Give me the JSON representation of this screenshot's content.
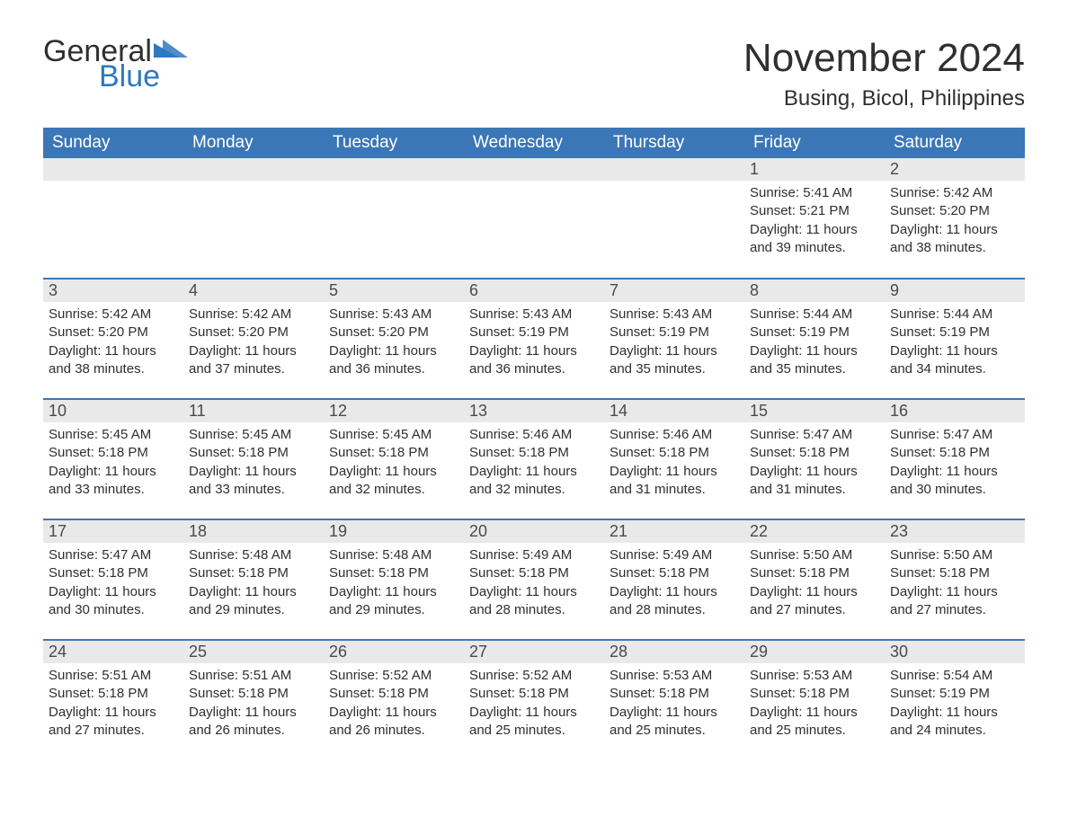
{
  "logo": {
    "word1": "General",
    "word2": "Blue",
    "accent_color": "#2f79bf"
  },
  "title": "November 2024",
  "location": "Busing, Bicol, Philippines",
  "colors": {
    "header_bg": "#3b77b6",
    "header_text": "#ffffff",
    "daynum_bg": "#e9e9e9",
    "row_border": "#3b77b6",
    "body_text": "#2f2f2f",
    "page_bg": "#ffffff"
  },
  "fonts": {
    "title_size_pt": 33,
    "location_size_pt": 18,
    "header_size_pt": 14,
    "cell_size_pt": 11
  },
  "columns": [
    "Sunday",
    "Monday",
    "Tuesday",
    "Wednesday",
    "Thursday",
    "Friday",
    "Saturday"
  ],
  "weeks": [
    [
      null,
      null,
      null,
      null,
      null,
      {
        "day": "1",
        "sunrise": "Sunrise: 5:41 AM",
        "sunset": "Sunset: 5:21 PM",
        "daylight": "Daylight: 11 hours and 39 minutes."
      },
      {
        "day": "2",
        "sunrise": "Sunrise: 5:42 AM",
        "sunset": "Sunset: 5:20 PM",
        "daylight": "Daylight: 11 hours and 38 minutes."
      }
    ],
    [
      {
        "day": "3",
        "sunrise": "Sunrise: 5:42 AM",
        "sunset": "Sunset: 5:20 PM",
        "daylight": "Daylight: 11 hours and 38 minutes."
      },
      {
        "day": "4",
        "sunrise": "Sunrise: 5:42 AM",
        "sunset": "Sunset: 5:20 PM",
        "daylight": "Daylight: 11 hours and 37 minutes."
      },
      {
        "day": "5",
        "sunrise": "Sunrise: 5:43 AM",
        "sunset": "Sunset: 5:20 PM",
        "daylight": "Daylight: 11 hours and 36 minutes."
      },
      {
        "day": "6",
        "sunrise": "Sunrise: 5:43 AM",
        "sunset": "Sunset: 5:19 PM",
        "daylight": "Daylight: 11 hours and 36 minutes."
      },
      {
        "day": "7",
        "sunrise": "Sunrise: 5:43 AM",
        "sunset": "Sunset: 5:19 PM",
        "daylight": "Daylight: 11 hours and 35 minutes."
      },
      {
        "day": "8",
        "sunrise": "Sunrise: 5:44 AM",
        "sunset": "Sunset: 5:19 PM",
        "daylight": "Daylight: 11 hours and 35 minutes."
      },
      {
        "day": "9",
        "sunrise": "Sunrise: 5:44 AM",
        "sunset": "Sunset: 5:19 PM",
        "daylight": "Daylight: 11 hours and 34 minutes."
      }
    ],
    [
      {
        "day": "10",
        "sunrise": "Sunrise: 5:45 AM",
        "sunset": "Sunset: 5:18 PM",
        "daylight": "Daylight: 11 hours and 33 minutes."
      },
      {
        "day": "11",
        "sunrise": "Sunrise: 5:45 AM",
        "sunset": "Sunset: 5:18 PM",
        "daylight": "Daylight: 11 hours and 33 minutes."
      },
      {
        "day": "12",
        "sunrise": "Sunrise: 5:45 AM",
        "sunset": "Sunset: 5:18 PM",
        "daylight": "Daylight: 11 hours and 32 minutes."
      },
      {
        "day": "13",
        "sunrise": "Sunrise: 5:46 AM",
        "sunset": "Sunset: 5:18 PM",
        "daylight": "Daylight: 11 hours and 32 minutes."
      },
      {
        "day": "14",
        "sunrise": "Sunrise: 5:46 AM",
        "sunset": "Sunset: 5:18 PM",
        "daylight": "Daylight: 11 hours and 31 minutes."
      },
      {
        "day": "15",
        "sunrise": "Sunrise: 5:47 AM",
        "sunset": "Sunset: 5:18 PM",
        "daylight": "Daylight: 11 hours and 31 minutes."
      },
      {
        "day": "16",
        "sunrise": "Sunrise: 5:47 AM",
        "sunset": "Sunset: 5:18 PM",
        "daylight": "Daylight: 11 hours and 30 minutes."
      }
    ],
    [
      {
        "day": "17",
        "sunrise": "Sunrise: 5:47 AM",
        "sunset": "Sunset: 5:18 PM",
        "daylight": "Daylight: 11 hours and 30 minutes."
      },
      {
        "day": "18",
        "sunrise": "Sunrise: 5:48 AM",
        "sunset": "Sunset: 5:18 PM",
        "daylight": "Daylight: 11 hours and 29 minutes."
      },
      {
        "day": "19",
        "sunrise": "Sunrise: 5:48 AM",
        "sunset": "Sunset: 5:18 PM",
        "daylight": "Daylight: 11 hours and 29 minutes."
      },
      {
        "day": "20",
        "sunrise": "Sunrise: 5:49 AM",
        "sunset": "Sunset: 5:18 PM",
        "daylight": "Daylight: 11 hours and 28 minutes."
      },
      {
        "day": "21",
        "sunrise": "Sunrise: 5:49 AM",
        "sunset": "Sunset: 5:18 PM",
        "daylight": "Daylight: 11 hours and 28 minutes."
      },
      {
        "day": "22",
        "sunrise": "Sunrise: 5:50 AM",
        "sunset": "Sunset: 5:18 PM",
        "daylight": "Daylight: 11 hours and 27 minutes."
      },
      {
        "day": "23",
        "sunrise": "Sunrise: 5:50 AM",
        "sunset": "Sunset: 5:18 PM",
        "daylight": "Daylight: 11 hours and 27 minutes."
      }
    ],
    [
      {
        "day": "24",
        "sunrise": "Sunrise: 5:51 AM",
        "sunset": "Sunset: 5:18 PM",
        "daylight": "Daylight: 11 hours and 27 minutes."
      },
      {
        "day": "25",
        "sunrise": "Sunrise: 5:51 AM",
        "sunset": "Sunset: 5:18 PM",
        "daylight": "Daylight: 11 hours and 26 minutes."
      },
      {
        "day": "26",
        "sunrise": "Sunrise: 5:52 AM",
        "sunset": "Sunset: 5:18 PM",
        "daylight": "Daylight: 11 hours and 26 minutes."
      },
      {
        "day": "27",
        "sunrise": "Sunrise: 5:52 AM",
        "sunset": "Sunset: 5:18 PM",
        "daylight": "Daylight: 11 hours and 25 minutes."
      },
      {
        "day": "28",
        "sunrise": "Sunrise: 5:53 AM",
        "sunset": "Sunset: 5:18 PM",
        "daylight": "Daylight: 11 hours and 25 minutes."
      },
      {
        "day": "29",
        "sunrise": "Sunrise: 5:53 AM",
        "sunset": "Sunset: 5:18 PM",
        "daylight": "Daylight: 11 hours and 25 minutes."
      },
      {
        "day": "30",
        "sunrise": "Sunrise: 5:54 AM",
        "sunset": "Sunset: 5:19 PM",
        "daylight": "Daylight: 11 hours and 24 minutes."
      }
    ]
  ]
}
